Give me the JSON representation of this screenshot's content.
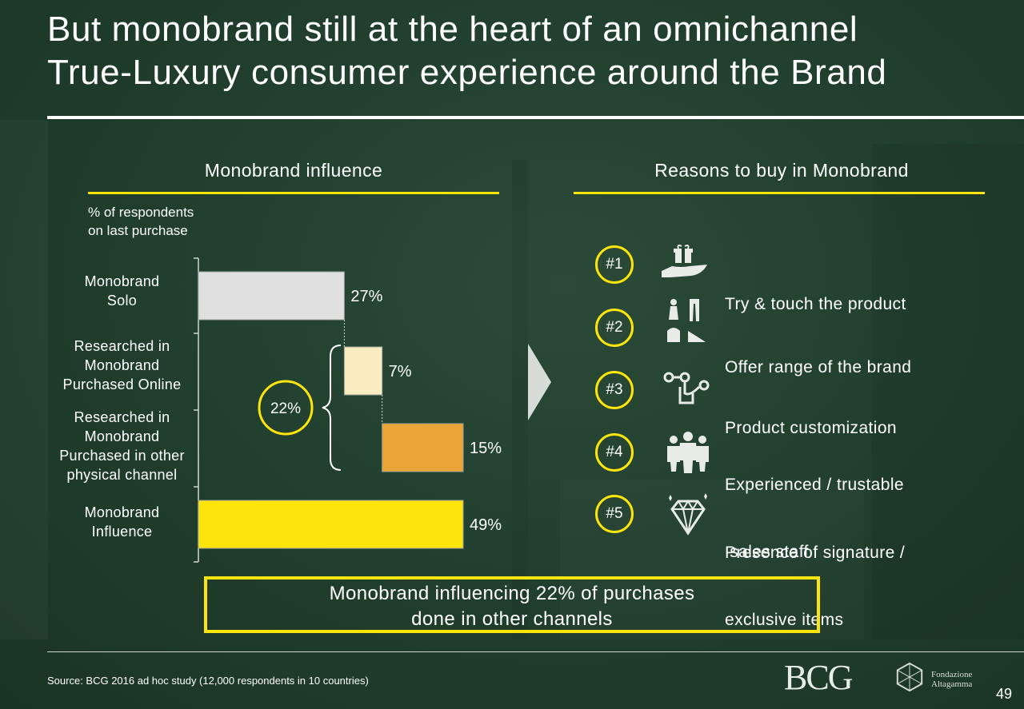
{
  "title_lines": [
    "But monobrand still at the heart of an omnichannel",
    "True-Luxury consumer experience around the Brand"
  ],
  "left_section": {
    "title": "Monobrand influence",
    "subtitle_lines": [
      "% of respondents",
      "on last purchase"
    ]
  },
  "right_section": {
    "title": "Reasons to buy in Monobrand",
    "reasons": [
      {
        "rank": "#1",
        "icon": "hand-gift-icon",
        "lines": [
          "Try & touch the product"
        ]
      },
      {
        "rank": "#2",
        "icon": "clothing-range-icon",
        "lines": [
          "Offer range of the brand"
        ]
      },
      {
        "rank": "#3",
        "icon": "customization-icon",
        "lines": [
          "Product customization"
        ]
      },
      {
        "rank": "#4",
        "icon": "sales-staff-icon",
        "lines": [
          "Experienced / trustable",
          " sales staff"
        ]
      },
      {
        "rank": "#5",
        "icon": "diamond-icon",
        "lines": [
          "Presence of signature /",
          "exclusive items"
        ]
      }
    ]
  },
  "chart_data": {
    "type": "bar",
    "orientation": "horizontal-waterfall",
    "categories": [
      [
        "Monobrand",
        "Solo"
      ],
      [
        "Researched in",
        "Monobrand",
        "Purchased Online"
      ],
      [
        "Researched in",
        "Monobrand",
        "Purchased in other",
        "physical channel"
      ],
      [
        "Monobrand",
        "Influence"
      ]
    ],
    "values": [
      27,
      7,
      15,
      49
    ],
    "offsets": [
      0,
      27,
      34,
      0
    ],
    "value_labels": [
      "27%",
      "7%",
      "15%",
      "49%"
    ],
    "colors": [
      "#e0e0e0",
      "#f8ecc0",
      "#eba536",
      "#fde50b"
    ],
    "xlim": [
      0,
      49
    ],
    "bracket_label": "22%"
  },
  "callout_lines": [
    "Monobrand influencing 22% of purchases",
    "done in other channels"
  ],
  "source": "Source: BCG 2016 ad hoc study (12,000 respondents in 10 countries)",
  "logos": {
    "bcg": "BCG",
    "fondazione_lines": [
      "Fondazione",
      "Altagamma"
    ]
  },
  "page_number": "49",
  "colors": {
    "accent": "#fde50b",
    "background": "#21402e",
    "text": "#ffffff"
  }
}
